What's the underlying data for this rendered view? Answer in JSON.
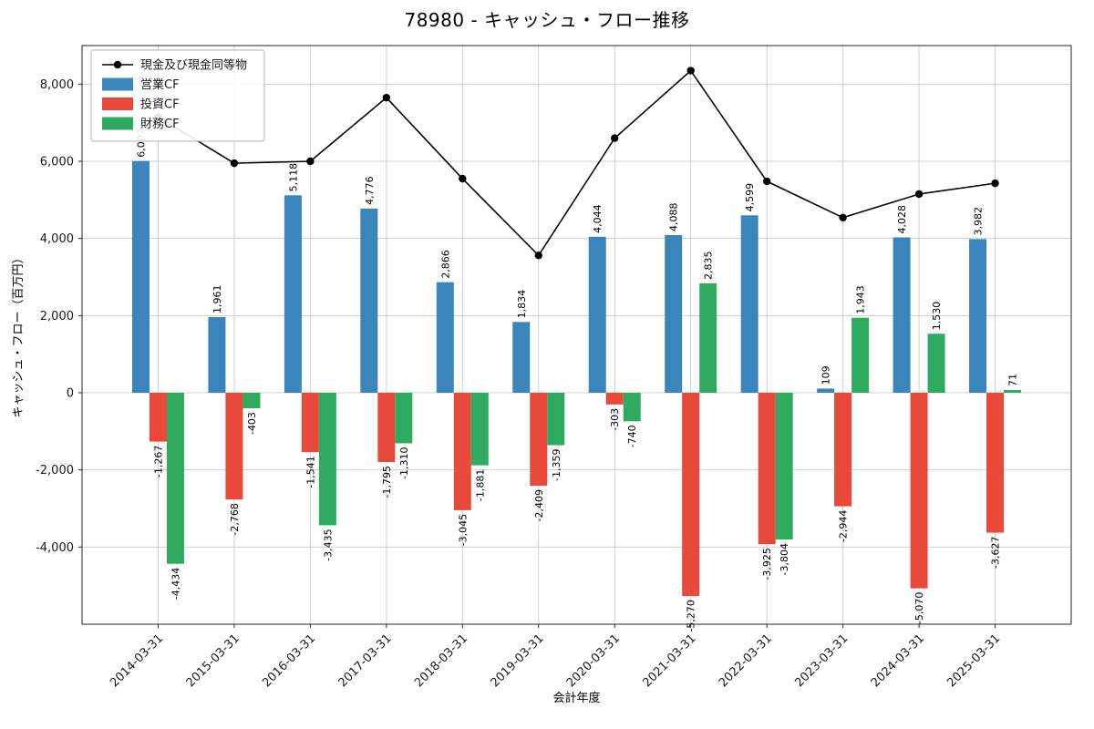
{
  "chart_data": {
    "type": "bar",
    "title": "78980 - キャッシュ・フロー推移",
    "xlabel": "会計年度",
    "ylabel": "キャッシュ・フロー（百万円）",
    "categories": [
      "2014-03-31",
      "2015-03-31",
      "2016-03-31",
      "2017-03-31",
      "2018-03-31",
      "2019-03-31",
      "2020-03-31",
      "2021-03-31",
      "2022-03-31",
      "2023-03-31",
      "2024-03-31",
      "2025-03-31"
    ],
    "bar_series": [
      {
        "id": "operating-cf",
        "name": "営業CF",
        "color": "#3a85bc",
        "values": [
          6007,
          1961,
          5118,
          4776,
          2866,
          1834,
          4044,
          4088,
          4599,
          109,
          4028,
          3982
        ]
      },
      {
        "id": "investing-cf",
        "name": "投資CF",
        "color": "#e8493b",
        "values": [
          -1267,
          -2768,
          -1541,
          -1795,
          -3045,
          -2409,
          -303,
          -5270,
          -3925,
          -2944,
          -5070,
          -3627
        ]
      },
      {
        "id": "financing-cf",
        "name": "財務CF",
        "color": "#2eab5e",
        "values": [
          -4434,
          -403,
          -3435,
          -1310,
          -1881,
          -1359,
          -740,
          2835,
          -3804,
          1943,
          1530,
          71
        ]
      }
    ],
    "line_series": {
      "id": "cash-and-equivalents",
      "name": "現金及び現金同等物",
      "color": "#000000",
      "values": [
        7150,
        5950,
        6000,
        7650,
        5550,
        3560,
        6600,
        8350,
        5480,
        4540,
        5150,
        5430
      ]
    },
    "legend": [
      {
        "label": "現金及び現金同等物",
        "type": "line-marker",
        "color": "#000000"
      },
      {
        "label": "営業CF",
        "type": "patch",
        "color": "#3a85bc"
      },
      {
        "label": "投資CF",
        "type": "patch",
        "color": "#e8493b"
      },
      {
        "label": "財務CF",
        "type": "patch",
        "color": "#2eab5e"
      }
    ],
    "ylim": [
      -6000,
      9000
    ],
    "yticks": [
      -4000,
      -2000,
      0,
      2000,
      4000,
      6000,
      8000
    ],
    "grid": true,
    "grid_color": "#cfcfcf",
    "legend_position": "upper-left"
  }
}
